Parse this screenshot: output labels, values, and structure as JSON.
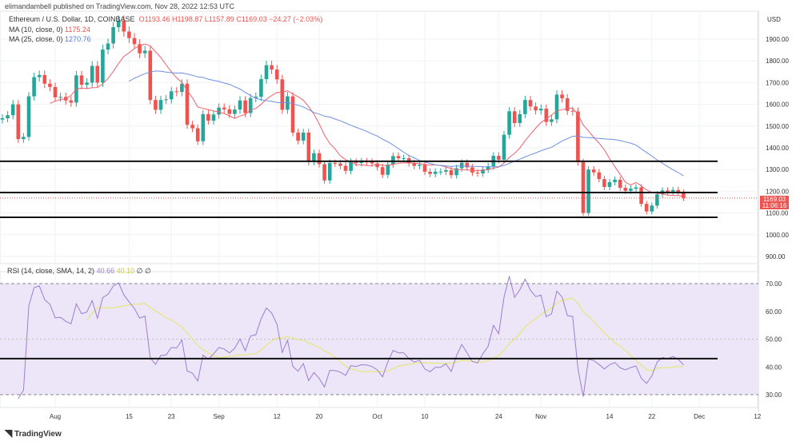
{
  "header": {
    "publisher": "elimandambell published on TradingView.com, Nov 28, 2022 12:53 UTC"
  },
  "legend": {
    "symbol": "Ethereum / U.S. Dollar, 1D, COINBASE",
    "open": "O1193.46",
    "high": "H1198.87",
    "low": "L1157.89",
    "close": "C1169.03",
    "change": "−24.27 (−2.03%)",
    "ma10_label": "MA (10, close, 0)",
    "ma10_value": "1175.24",
    "ma25_label": "MA (25, close, 0)",
    "ma25_value": "1270.76",
    "rsi_label": "RSI (14, close, SMA, 14, 2)",
    "rsi_value": "40.66",
    "rsi_sma_value": "40.10",
    "rsi_extra": "∅ ∅"
  },
  "price_tag": {
    "price": "1169.03",
    "countdown": "11:06:16"
  },
  "colors": {
    "up": "#26a69a",
    "down": "#ef5350",
    "ma10": "#f0606a",
    "ma25": "#6f8fe0",
    "rsi": "#9c7ed0",
    "rsi_sma": "#e6e67a",
    "rsi_band": "#ede6f8"
  },
  "footer": {
    "brand": "TradingView"
  },
  "chart_data": [
    {
      "type": "candlestick",
      "currency": "USD",
      "ylim": [
        850,
        1960
      ],
      "yticks": [
        "1900.00",
        "1800.00",
        "1700.00",
        "1600.00",
        "1500.00",
        "1400.00",
        "1300.00",
        "1200.00",
        "1100.00",
        "1000.00",
        "900.00"
      ],
      "start_date": "2022-07-22",
      "first_open": 1530,
      "closes": [
        1536,
        1550,
        1600,
        1440,
        1450,
        1637,
        1725,
        1735,
        1695,
        1680,
        1632,
        1634,
        1618,
        1608,
        1733,
        1690,
        1700,
        1777,
        1700,
        1852,
        1880,
        1955,
        1985,
        1935,
        1905,
        1877,
        1835,
        1847,
        1620,
        1575,
        1620,
        1623,
        1660,
        1657,
        1695,
        1506,
        1490,
        1430,
        1555,
        1525,
        1553,
        1585,
        1577,
        1556,
        1576,
        1618,
        1560,
        1629,
        1635,
        1716,
        1780,
        1760,
        1715,
        1575,
        1637,
        1470,
        1433,
        1470,
        1335,
        1375,
        1325,
        1250,
        1330,
        1328,
        1317,
        1294,
        1335,
        1330,
        1337,
        1335,
        1328,
        1311,
        1276,
        1323,
        1362,
        1352,
        1352,
        1330,
        1317,
        1322,
        1290,
        1280,
        1290,
        1290,
        1297,
        1274,
        1306,
        1331,
        1310,
        1286,
        1282,
        1300,
        1315,
        1363,
        1345,
        1460,
        1568,
        1514,
        1555,
        1620,
        1590,
        1572,
        1580,
        1519,
        1531,
        1645,
        1628,
        1570,
        1567,
        1334,
        1100,
        1300,
        1287,
        1256,
        1220,
        1242,
        1253,
        1216,
        1202,
        1212,
        1218,
        1142,
        1107,
        1134,
        1186,
        1204,
        1198,
        1206,
        1194,
        1169
      ],
      "overlays": [
        "MA 10",
        "MA 25"
      ],
      "horizontal_lines": [
        1338,
        1194,
        1080
      ]
    },
    {
      "type": "line",
      "title": "RSI (14, close, SMA, 14, 2)",
      "ylim": [
        25,
        75
      ],
      "yticks": [
        "70.00",
        "60.00",
        "50.00",
        "40.00",
        "30.00"
      ],
      "band": [
        30,
        70
      ],
      "horizontal_lines": [
        43
      ]
    }
  ],
  "xaxis": {
    "ticks": [
      {
        "label": "Aug",
        "date": "2022-08-01"
      },
      {
        "label": "15",
        "date": "2022-08-15"
      },
      {
        "label": "23",
        "date": "2022-08-23"
      },
      {
        "label": "Sep",
        "date": "2022-09-01"
      },
      {
        "label": "12",
        "date": "2022-09-12"
      },
      {
        "label": "20",
        "date": "2022-09-20"
      },
      {
        "label": "Oct",
        "date": "2022-10-01"
      },
      {
        "label": "10",
        "date": "2022-10-10"
      },
      {
        "label": "24",
        "date": "2022-10-24"
      },
      {
        "label": "Nov",
        "date": "2022-11-01"
      },
      {
        "label": "14",
        "date": "2022-11-14"
      },
      {
        "label": "22",
        "date": "2022-11-22"
      },
      {
        "label": "Dec",
        "date": "2022-12-01"
      },
      {
        "label": "12",
        "date": "2022-12-12"
      }
    ]
  }
}
